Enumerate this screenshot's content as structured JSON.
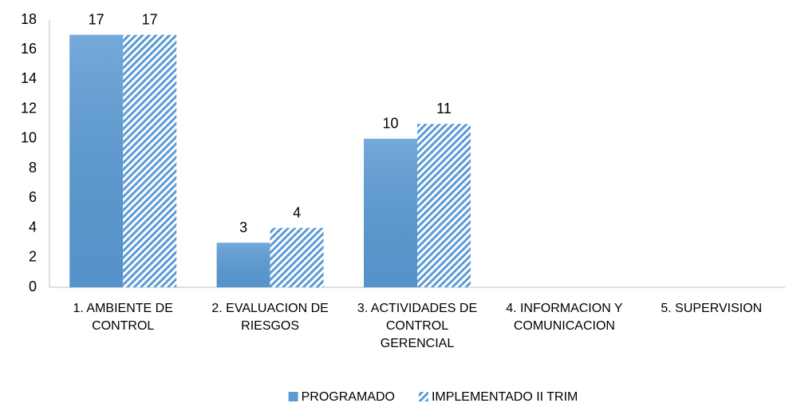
{
  "chart_data": {
    "type": "bar",
    "categories": [
      "1. AMBIENTE DE CONTROL",
      "2. EVALUACION DE RIESGOS",
      "3. ACTIVIDADES DE CONTROL GERENCIAL",
      "4. INFORMACION Y COMUNICACION",
      "5. SUPERVISION"
    ],
    "series": [
      {
        "name": "PROGRAMADO",
        "color": "#5b9bd5",
        "pattern": "solid",
        "values": [
          17,
          3,
          10,
          null,
          null
        ]
      },
      {
        "name": "IMPLEMENTADO II TRIM",
        "color": "#5b9bd5",
        "pattern": "diagonal",
        "values": [
          17,
          4,
          11,
          null,
          null
        ]
      }
    ],
    "ylim": [
      0,
      18
    ],
    "yticks": [
      0,
      2,
      4,
      6,
      8,
      10,
      12,
      14,
      16,
      18
    ],
    "grid": false,
    "legend": "bottom"
  }
}
